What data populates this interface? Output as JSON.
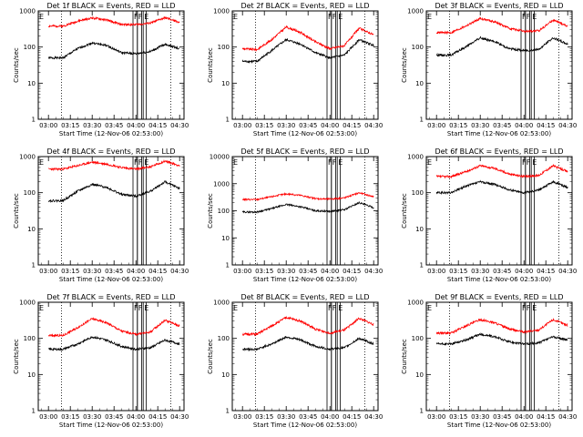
{
  "figure": {
    "xlabel": "Start Time (12-Nov-06 02:53:00)",
    "ylabel": "Counts/sec",
    "x_ticks": [
      "03:00",
      "03:15",
      "03:30",
      "03:45",
      "04:00",
      "04:15",
      "04:30"
    ],
    "y_ticks": [
      "1",
      "10",
      "100",
      "1000"
    ],
    "markers": [
      "F",
      "F",
      "E",
      "E"
    ]
  },
  "chart_data": [
    {
      "type": "line",
      "title": "Det 1f BLACK = Events, RED = LLD",
      "xlabel": "Start Time (12-Nov-06 02:53:00)",
      "ylabel": "Counts/sec",
      "yscale": "log",
      "ylim": [
        1,
        1000
      ],
      "x": [
        "03:00",
        "03:10",
        "03:20",
        "03:30",
        "03:40",
        "03:50",
        "04:00",
        "04:10",
        "04:20",
        "04:30"
      ],
      "series": [
        {
          "color": "#000000",
          "values": [
            50,
            50,
            90,
            130,
            110,
            70,
            65,
            75,
            120,
            90
          ]
        },
        {
          "color": "#ff0000",
          "values": [
            380,
            380,
            520,
            640,
            560,
            420,
            420,
            460,
            650,
            480
          ]
        }
      ]
    },
    {
      "type": "line",
      "title": "Det 2f BLACK = Events, RED = LLD",
      "xlabel": "Start Time (12-Nov-06 02:53:00)",
      "ylabel": "Counts/sec",
      "yscale": "log",
      "ylim": [
        1,
        1000
      ],
      "x": [
        "03:00",
        "03:10",
        "03:20",
        "03:30",
        "03:40",
        "03:50",
        "04:00",
        "04:10",
        "04:20",
        "04:30"
      ],
      "series": [
        {
          "color": "#000000",
          "values": [
            40,
            40,
            80,
            160,
            120,
            70,
            50,
            60,
            160,
            110
          ]
        },
        {
          "color": "#ff0000",
          "values": [
            90,
            85,
            160,
            360,
            250,
            140,
            90,
            110,
            330,
            220
          ]
        }
      ]
    },
    {
      "type": "line",
      "title": "Det 3f BLACK = Events, RED = LLD",
      "xlabel": "Start Time (12-Nov-06 02:53:00)",
      "ylabel": "Counts/sec",
      "yscale": "log",
      "ylim": [
        1,
        1000
      ],
      "x": [
        "03:00",
        "03:10",
        "03:20",
        "03:30",
        "03:40",
        "03:50",
        "04:00",
        "04:10",
        "04:20",
        "04:30"
      ],
      "series": [
        {
          "color": "#000000",
          "values": [
            60,
            60,
            100,
            180,
            140,
            90,
            80,
            85,
            180,
            120
          ]
        },
        {
          "color": "#ff0000",
          "values": [
            250,
            250,
            380,
            620,
            500,
            330,
            270,
            280,
            560,
            380
          ]
        }
      ]
    },
    {
      "type": "line",
      "title": "Det 4f BLACK = Events, RED = LLD",
      "xlabel": "Start Time (12-Nov-06 02:53:00)",
      "ylabel": "Counts/sec",
      "yscale": "log",
      "ylim": [
        1,
        1000
      ],
      "x": [
        "03:00",
        "03:10",
        "03:20",
        "03:30",
        "03:40",
        "03:50",
        "04:00",
        "04:10",
        "04:20",
        "04:30"
      ],
      "series": [
        {
          "color": "#000000",
          "values": [
            60,
            60,
            110,
            170,
            140,
            90,
            80,
            110,
            200,
            130
          ]
        },
        {
          "color": "#ff0000",
          "values": [
            450,
            450,
            560,
            700,
            620,
            500,
            450,
            520,
            750,
            560
          ]
        }
      ]
    },
    {
      "type": "line",
      "title": "Det 5f BLACK = Events, RED = LLD",
      "xlabel": "Start Time (12-Nov-06 02:53:00)",
      "ylabel": "Counts/sec",
      "yscale": "log",
      "ylim": [
        1,
        10000
      ],
      "x": [
        "03:00",
        "03:10",
        "03:20",
        "03:30",
        "03:40",
        "03:50",
        "04:00",
        "04:10",
        "04:20",
        "04:30"
      ],
      "series": [
        {
          "color": "#000000",
          "values": [
            90,
            90,
            120,
            170,
            140,
            100,
            95,
            110,
            200,
            130
          ]
        },
        {
          "color": "#ff0000",
          "values": [
            260,
            260,
            330,
            420,
            370,
            280,
            270,
            300,
            460,
            330
          ]
        }
      ]
    },
    {
      "type": "line",
      "title": "Det 6f BLACK = Events, RED = LLD",
      "xlabel": "Start Time (12-Nov-06 02:53:00)",
      "ylabel": "Counts/sec",
      "yscale": "log",
      "ylim": [
        1,
        1000
      ],
      "x": [
        "03:00",
        "03:10",
        "03:20",
        "03:30",
        "03:40",
        "03:50",
        "04:00",
        "04:10",
        "04:20",
        "04:30"
      ],
      "series": [
        {
          "color": "#000000",
          "values": [
            100,
            100,
            150,
            200,
            170,
            120,
            100,
            120,
            200,
            140
          ]
        },
        {
          "color": "#ff0000",
          "values": [
            280,
            280,
            380,
            560,
            470,
            330,
            280,
            300,
            560,
            380
          ]
        }
      ]
    },
    {
      "type": "line",
      "title": "Det 7f BLACK = Events, RED = LLD",
      "xlabel": "Start Time (12-Nov-06 02:53:00)",
      "ylabel": "Counts/sec",
      "yscale": "log",
      "ylim": [
        1,
        1000
      ],
      "x": [
        "03:00",
        "03:10",
        "03:20",
        "03:30",
        "03:40",
        "03:50",
        "04:00",
        "04:10",
        "04:20",
        "04:30"
      ],
      "series": [
        {
          "color": "#000000",
          "values": [
            50,
            50,
            70,
            110,
            90,
            60,
            50,
            55,
            90,
            70
          ]
        },
        {
          "color": "#ff0000",
          "values": [
            120,
            120,
            200,
            350,
            270,
            160,
            130,
            150,
            320,
            220
          ]
        }
      ]
    },
    {
      "type": "line",
      "title": "Det 8f BLACK = Events, RED = LLD",
      "xlabel": "Start Time (12-Nov-06 02:53:00)",
      "ylabel": "Counts/sec",
      "yscale": "log",
      "ylim": [
        1,
        1000
      ],
      "x": [
        "03:00",
        "03:10",
        "03:20",
        "03:30",
        "03:40",
        "03:50",
        "04:00",
        "04:10",
        "04:20",
        "04:30"
      ],
      "series": [
        {
          "color": "#000000",
          "values": [
            50,
            50,
            70,
            110,
            90,
            60,
            50,
            55,
            100,
            70
          ]
        },
        {
          "color": "#ff0000",
          "values": [
            130,
            130,
            220,
            380,
            300,
            180,
            140,
            170,
            360,
            240
          ]
        }
      ]
    },
    {
      "type": "line",
      "title": "Det 9f BLACK = Events, RED = LLD",
      "xlabel": "Start Time (12-Nov-06 02:53:00)",
      "ylabel": "Counts/sec",
      "yscale": "log",
      "ylim": [
        1,
        1000
      ],
      "x": [
        "03:00",
        "03:10",
        "03:20",
        "03:30",
        "03:40",
        "03:50",
        "04:00",
        "04:10",
        "04:20",
        "04:30"
      ],
      "series": [
        {
          "color": "#000000",
          "values": [
            70,
            70,
            90,
            130,
            110,
            80,
            70,
            75,
            110,
            90
          ]
        },
        {
          "color": "#ff0000",
          "values": [
            140,
            140,
            220,
            330,
            270,
            180,
            150,
            170,
            330,
            230
          ]
        }
      ]
    }
  ]
}
